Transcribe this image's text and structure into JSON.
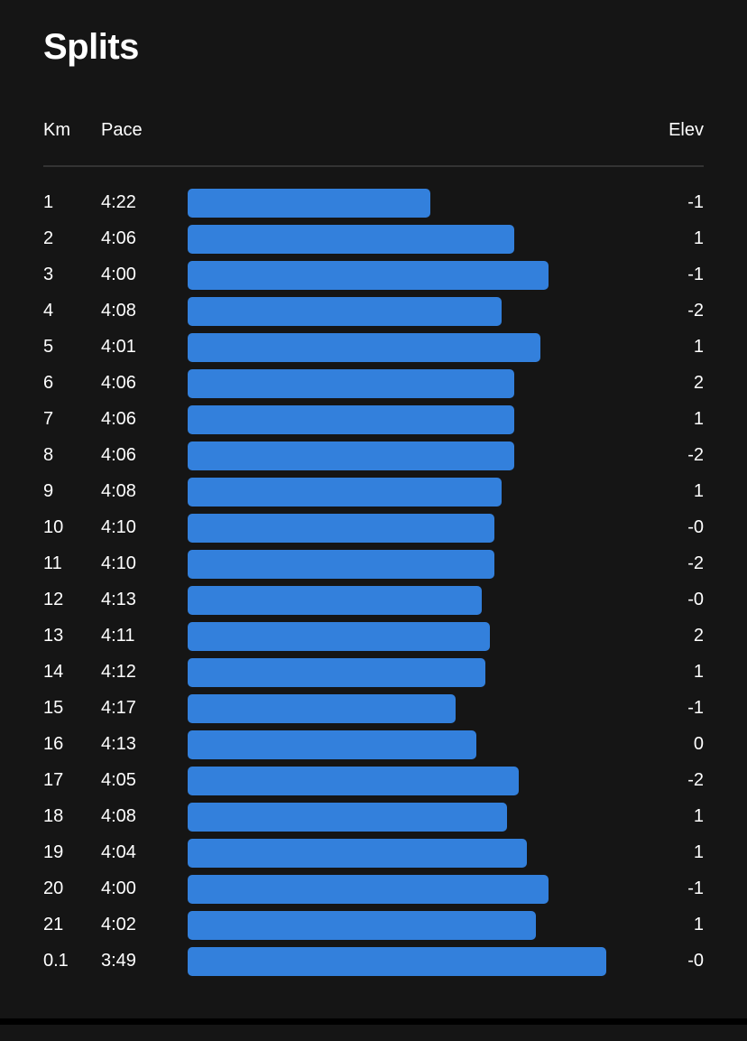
{
  "title": "Splits",
  "header": {
    "km": "Km",
    "pace": "Pace",
    "elev": "Elev"
  },
  "colors": {
    "background": "#151515",
    "bar": "#3380dc",
    "divider": "#333333"
  },
  "splits": [
    {
      "km": "1",
      "pace": "4:22",
      "elev": "-1",
      "bar_fraction": 0.58
    },
    {
      "km": "2",
      "pace": "4:06",
      "elev": "1",
      "bar_fraction": 0.781
    },
    {
      "km": "3",
      "pace": "4:00",
      "elev": "-1",
      "bar_fraction": 0.862
    },
    {
      "km": "4",
      "pace": "4:08",
      "elev": "-2",
      "bar_fraction": 0.751
    },
    {
      "km": "5",
      "pace": "4:01",
      "elev": "1",
      "bar_fraction": 0.842
    },
    {
      "km": "6",
      "pace": "4:06",
      "elev": "2",
      "bar_fraction": 0.781
    },
    {
      "km": "7",
      "pace": "4:06",
      "elev": "1",
      "bar_fraction": 0.781
    },
    {
      "km": "8",
      "pace": "4:06",
      "elev": "-2",
      "bar_fraction": 0.781
    },
    {
      "km": "9",
      "pace": "4:08",
      "elev": "1",
      "bar_fraction": 0.751
    },
    {
      "km": "10",
      "pace": "4:10",
      "elev": "-0",
      "bar_fraction": 0.732
    },
    {
      "km": "11",
      "pace": "4:10",
      "elev": "-2",
      "bar_fraction": 0.732
    },
    {
      "km": "12",
      "pace": "4:13",
      "elev": "-0",
      "bar_fraction": 0.702
    },
    {
      "km": "13",
      "pace": "4:11",
      "elev": "2",
      "bar_fraction": 0.721
    },
    {
      "km": "14",
      "pace": "4:12",
      "elev": "1",
      "bar_fraction": 0.711
    },
    {
      "km": "15",
      "pace": "4:17",
      "elev": "-1",
      "bar_fraction": 0.641
    },
    {
      "km": "16",
      "pace": "4:13",
      "elev": "0",
      "bar_fraction": 0.69
    },
    {
      "km": "17",
      "pace": "4:05",
      "elev": "-2",
      "bar_fraction": 0.792
    },
    {
      "km": "18",
      "pace": "4:08",
      "elev": "1",
      "bar_fraction": 0.762
    },
    {
      "km": "19",
      "pace": "4:04",
      "elev": "1",
      "bar_fraction": 0.81
    },
    {
      "km": "20",
      "pace": "4:00",
      "elev": "-1",
      "bar_fraction": 0.862
    },
    {
      "km": "21",
      "pace": "4:02",
      "elev": "1",
      "bar_fraction": 0.831
    },
    {
      "km": "0.1",
      "pace": "3:49",
      "elev": "-0",
      "bar_fraction": 1.0
    }
  ]
}
